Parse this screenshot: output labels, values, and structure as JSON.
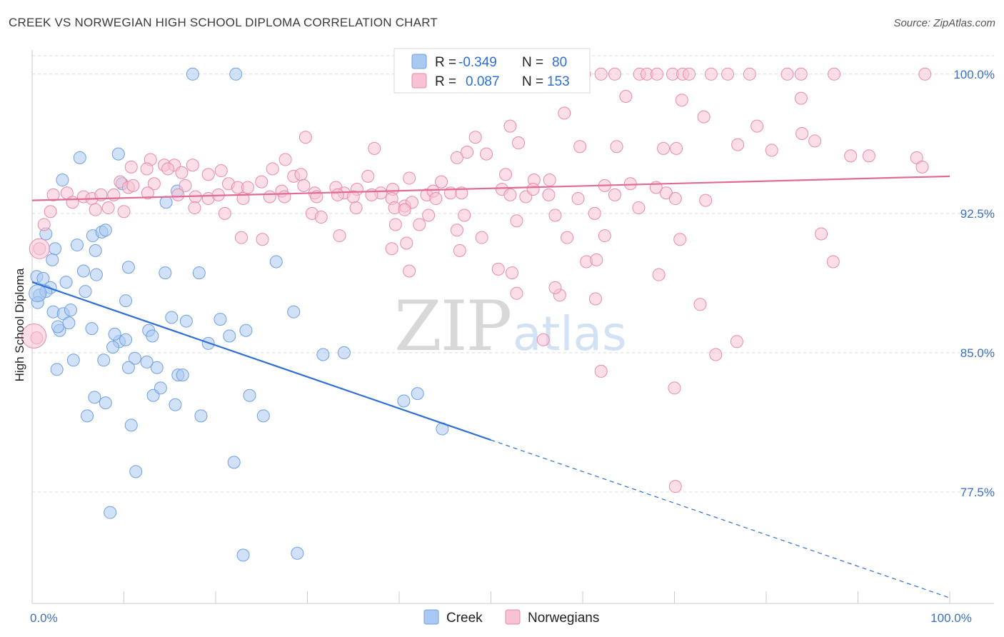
{
  "header": {
    "title": "CREEK VS NORWEGIAN HIGH SCHOOL DIPLOMA CORRELATION CHART",
    "source": "Source: ZipAtlas.com"
  },
  "watermark": {
    "zip": "ZIP",
    "atlas": "atlas"
  },
  "legend": {
    "rows": [
      {
        "r_label": "R = ",
        "r_value": "-0.349",
        "n_label": "N = ",
        "n_value": "80",
        "color": "#aac9f2",
        "stroke": "#6fa0e0"
      },
      {
        "r_label": "R = ",
        "r_value": "0.087",
        "n_label": "N = ",
        "n_value": "153",
        "color": "#f7c2d3",
        "stroke": "#e88aab"
      }
    ]
  },
  "bottom_legend": [
    {
      "label": "Creek",
      "color": "#aac9f2",
      "stroke": "#6fa0e0"
    },
    {
      "label": "Norwegians",
      "color": "#f7c2d3",
      "stroke": "#e88aab"
    }
  ],
  "chart_data": {
    "type": "scatter",
    "title": "CREEK VS NORWEGIAN HIGH SCHOOL DIPLOMA CORRELATION CHART",
    "xlabel": "",
    "ylabel": "High School Diploma",
    "xlim": [
      0,
      100
    ],
    "ylim": [
      71.5,
      101.3
    ],
    "x_ticks": [
      {
        "value": 0,
        "label": "0.0%"
      },
      {
        "value": 100,
        "label": "100.0%"
      }
    ],
    "y_ticks": [
      {
        "value": 77.5,
        "label": "77.5%"
      },
      {
        "value": 85.0,
        "label": "85.0%"
      },
      {
        "value": 92.5,
        "label": "92.5%"
      },
      {
        "value": 100.0,
        "label": "100.0%"
      }
    ],
    "grid": true,
    "legend_position": "top-center",
    "series": [
      {
        "name": "Creek",
        "color": "#aac9f2",
        "stroke": "#6fa0e0",
        "trend": {
          "x0": 0,
          "y0": 88.8,
          "x1": 100,
          "y1": 71.8,
          "solid_until": 50
        },
        "points": [
          [
            17.5,
            100
          ],
          [
            22.2,
            100
          ],
          [
            5.2,
            95.5
          ],
          [
            9.4,
            95.7
          ],
          [
            3.3,
            94.3
          ],
          [
            9.8,
            94.1
          ],
          [
            14.6,
            93.1
          ],
          [
            15.8,
            93.7
          ],
          [
            1.5,
            91.4
          ],
          [
            6.6,
            91.3
          ],
          [
            7.6,
            91.5
          ],
          [
            8.0,
            91.6
          ],
          [
            4.9,
            90.8
          ],
          [
            2.5,
            90.6
          ],
          [
            6.9,
            90.5
          ],
          [
            2.2,
            90.0
          ],
          [
            10.5,
            89.6
          ],
          [
            14.5,
            89.3
          ],
          [
            18.2,
            89.3
          ],
          [
            26.6,
            89.9
          ],
          [
            0.5,
            89.1
          ],
          [
            1.2,
            89.0
          ],
          [
            7.0,
            89.2
          ],
          [
            5.6,
            89.4
          ],
          [
            3.7,
            88.8
          ],
          [
            2.0,
            88.5
          ],
          [
            0.8,
            88.1
          ],
          [
            1.5,
            88.3
          ],
          [
            5.8,
            88.3
          ],
          [
            0.6,
            87.7
          ],
          [
            10.2,
            87.8
          ],
          [
            28.5,
            87.2
          ],
          [
            2.3,
            87.2
          ],
          [
            3.4,
            87.1
          ],
          [
            4.2,
            87.3
          ],
          [
            15.2,
            86.9
          ],
          [
            20.5,
            86.8
          ],
          [
            4.0,
            86.6
          ],
          [
            3.0,
            86.2
          ],
          [
            6.5,
            86.3
          ],
          [
            12.7,
            86.2
          ],
          [
            23.3,
            86.2
          ],
          [
            9.5,
            85.6
          ],
          [
            10.2,
            85.7
          ],
          [
            13.1,
            85.9
          ],
          [
            8.8,
            85.3
          ],
          [
            19.2,
            85.5
          ],
          [
            21.5,
            85.9
          ],
          [
            31.7,
            84.9
          ],
          [
            34.0,
            85.0
          ],
          [
            4.5,
            84.6
          ],
          [
            7.8,
            84.6
          ],
          [
            11.2,
            84.7
          ],
          [
            10.5,
            84.2
          ],
          [
            13.6,
            84.2
          ],
          [
            2.7,
            84.1
          ],
          [
            15.9,
            83.8
          ],
          [
            16.4,
            83.8
          ],
          [
            13.2,
            82.7
          ],
          [
            14.0,
            83.1
          ],
          [
            6.8,
            82.6
          ],
          [
            8.0,
            82.3
          ],
          [
            15.6,
            82.2
          ],
          [
            23.7,
            82.7
          ],
          [
            40.5,
            82.4
          ],
          [
            42.0,
            82.8
          ],
          [
            6.0,
            81.6
          ],
          [
            18.4,
            81.6
          ],
          [
            25.2,
            81.6
          ],
          [
            10.8,
            81.1
          ],
          [
            44.7,
            80.9
          ],
          [
            22.0,
            79.1
          ],
          [
            11.3,
            78.6
          ],
          [
            8.5,
            76.4
          ],
          [
            23.0,
            74.1
          ],
          [
            28.9,
            74.2
          ],
          [
            2.8,
            86.4
          ],
          [
            12.5,
            84.5
          ],
          [
            9.0,
            86.0
          ],
          [
            16.8,
            86.7
          ]
        ]
      },
      {
        "name": "Norwegians",
        "color": "#f7c2d3",
        "stroke": "#e88aab",
        "trend": {
          "x0": 0,
          "y0": 93.2,
          "x1": 100,
          "y1": 94.5,
          "solid_until": 100
        },
        "points": [
          [
            60.2,
            100
          ],
          [
            62.0,
            100
          ],
          [
            63.5,
            100
          ],
          [
            66.2,
            100
          ],
          [
            67.0,
            100
          ],
          [
            68.1,
            100
          ],
          [
            69.8,
            100
          ],
          [
            70.9,
            100
          ],
          [
            71.6,
            100
          ],
          [
            74.0,
            100
          ],
          [
            75.8,
            100
          ],
          [
            78.2,
            100
          ],
          [
            82.3,
            100
          ],
          [
            83.8,
            100
          ],
          [
            87.4,
            100
          ],
          [
            97.3,
            100
          ],
          [
            64.7,
            98.8
          ],
          [
            70.8,
            98.6
          ],
          [
            83.8,
            98.7
          ],
          [
            58.0,
            97.9
          ],
          [
            73.2,
            97.7
          ],
          [
            79.0,
            97.2
          ],
          [
            83.9,
            96.8
          ],
          [
            85.3,
            96.4
          ],
          [
            68.8,
            96.0
          ],
          [
            70.2,
            96.0
          ],
          [
            76.9,
            96.2
          ],
          [
            80.6,
            95.9
          ],
          [
            89.2,
            95.6
          ],
          [
            91.2,
            95.6
          ],
          [
            96.4,
            95.5
          ],
          [
            97.0,
            95.0
          ],
          [
            29.8,
            96.6
          ],
          [
            48.3,
            96.6
          ],
          [
            52.1,
            97.2
          ],
          [
            53.0,
            96.3
          ],
          [
            46.3,
            95.5
          ],
          [
            47.4,
            95.8
          ],
          [
            49.5,
            95.7
          ],
          [
            59.7,
            96.1
          ],
          [
            63.7,
            96.1
          ],
          [
            37.3,
            96.0
          ],
          [
            27.6,
            95.4
          ],
          [
            12.9,
            95.4
          ],
          [
            14.4,
            95.1
          ],
          [
            15.5,
            95.1
          ],
          [
            17.5,
            95.1
          ],
          [
            10.8,
            95.0
          ],
          [
            12.5,
            94.9
          ],
          [
            14.8,
            94.9
          ],
          [
            16.3,
            94.7
          ],
          [
            20.6,
            94.8
          ],
          [
            26.2,
            94.9
          ],
          [
            28.5,
            94.5
          ],
          [
            29.3,
            94.6
          ],
          [
            36.6,
            94.5
          ],
          [
            41.1,
            94.4
          ],
          [
            44.6,
            94.2
          ],
          [
            51.6,
            94.6
          ],
          [
            54.7,
            94.3
          ],
          [
            56.4,
            94.3
          ],
          [
            62.4,
            94.0
          ],
          [
            65.2,
            94.1
          ],
          [
            9.6,
            94.2
          ],
          [
            10.5,
            93.9
          ],
          [
            11.0,
            94.0
          ],
          [
            13.3,
            94.1
          ],
          [
            16.7,
            94.0
          ],
          [
            19.2,
            94.6
          ],
          [
            21.4,
            94.1
          ],
          [
            22.4,
            93.9
          ],
          [
            23.5,
            93.9
          ],
          [
            25.0,
            94.2
          ],
          [
            27.2,
            93.7
          ],
          [
            29.6,
            94.0
          ],
          [
            30.8,
            93.6
          ],
          [
            33.1,
            93.9
          ],
          [
            34.0,
            93.6
          ],
          [
            35.4,
            93.8
          ],
          [
            38.0,
            93.6
          ],
          [
            39.3,
            93.8
          ],
          [
            43.0,
            93.5
          ],
          [
            43.7,
            93.7
          ],
          [
            45.6,
            93.6
          ],
          [
            46.8,
            93.6
          ],
          [
            51.2,
            93.8
          ],
          [
            52.1,
            93.5
          ],
          [
            53.8,
            93.4
          ],
          [
            54.6,
            93.8
          ],
          [
            56.3,
            93.5
          ],
          [
            59.5,
            93.3
          ],
          [
            63.5,
            93.5
          ],
          [
            68.0,
            93.9
          ],
          [
            69.1,
            93.6
          ],
          [
            70.1,
            93.3
          ],
          [
            73.4,
            93.2
          ],
          [
            2.3,
            93.5
          ],
          [
            3.8,
            93.6
          ],
          [
            4.4,
            93.1
          ],
          [
            5.6,
            93.4
          ],
          [
            6.5,
            93.3
          ],
          [
            7.5,
            93.5
          ],
          [
            8.9,
            93.5
          ],
          [
            12.6,
            93.6
          ],
          [
            15.9,
            93.5
          ],
          [
            17.8,
            93.4
          ],
          [
            19.2,
            93.3
          ],
          [
            20.3,
            93.5
          ],
          [
            23.0,
            93.3
          ],
          [
            25.9,
            93.4
          ],
          [
            27.5,
            93.4
          ],
          [
            31.0,
            93.4
          ],
          [
            33.3,
            93.5
          ],
          [
            35.0,
            93.4
          ],
          [
            37.0,
            93.5
          ],
          [
            39.2,
            93.3
          ],
          [
            40.6,
            92.9
          ],
          [
            41.4,
            93.1
          ],
          [
            44.0,
            93.3
          ],
          [
            2.0,
            92.6
          ],
          [
            6.9,
            92.7
          ],
          [
            8.3,
            92.8
          ],
          [
            10.0,
            92.6
          ],
          [
            17.7,
            92.8
          ],
          [
            21.0,
            92.5
          ],
          [
            30.5,
            92.5
          ],
          [
            31.5,
            92.3
          ],
          [
            35.3,
            92.8
          ],
          [
            39.5,
            92.8
          ],
          [
            40.6,
            92.7
          ],
          [
            43.2,
            92.4
          ],
          [
            47.1,
            92.4
          ],
          [
            52.8,
            92.1
          ],
          [
            57.0,
            92.4
          ],
          [
            61.3,
            92.5
          ],
          [
            66.1,
            92.8
          ],
          [
            1.3,
            91.9
          ],
          [
            22.8,
            91.2
          ],
          [
            25.1,
            91.1
          ],
          [
            33.5,
            91.3
          ],
          [
            39.6,
            91.9
          ],
          [
            42.2,
            91.9
          ],
          [
            46.3,
            91.6
          ],
          [
            49.0,
            91.2
          ],
          [
            58.3,
            91.2
          ],
          [
            62.4,
            91.3
          ],
          [
            0.8,
            90.6
          ],
          [
            0.5,
            85.8
          ],
          [
            40.8,
            90.9
          ],
          [
            46.6,
            90.5
          ],
          [
            50.8,
            89.5
          ],
          [
            52.3,
            89.3
          ]
        ]
      }
    ]
  },
  "extra_norwegian_points": {
    "description": "",
    "points": [
      [
        39.2,
        90.6
      ],
      [
        41.1,
        89.4
      ],
      [
        60.4,
        89.9
      ],
      [
        68.3,
        89.2
      ],
      [
        87.3,
        89.9
      ],
      [
        86.0,
        91.4
      ],
      [
        70.6,
        91.1
      ],
      [
        52.8,
        88.2
      ],
      [
        57.5,
        88.1
      ],
      [
        61.4,
        87.9
      ],
      [
        55.7,
        85.7
      ],
      [
        62.0,
        84.0
      ],
      [
        74.5,
        84.9
      ],
      [
        76.8,
        85.6
      ],
      [
        70.0,
        83.1
      ],
      [
        70.1,
        77.8
      ],
      [
        61.5,
        90.0
      ],
      [
        57.0,
        88.5
      ],
      [
        72.8,
        87.6
      ]
    ]
  }
}
